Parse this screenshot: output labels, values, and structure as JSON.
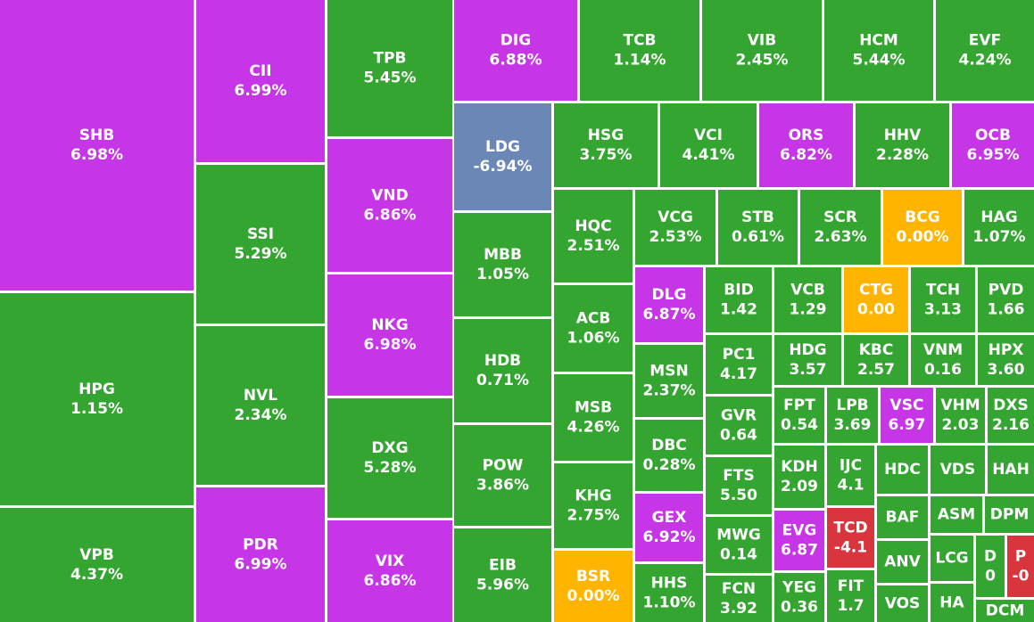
{
  "chart_data": {
    "type": "treemap",
    "categories": [
      "SHB",
      "HPG",
      "VPB",
      "CII",
      "SSI",
      "NVL",
      "PDR",
      "TPB",
      "VND",
      "NKG",
      "DXG",
      "VIX",
      "DIG",
      "TCB",
      "VIB",
      "HCM",
      "EVF",
      "LDG",
      "MBB",
      "HDB",
      "POW",
      "EIB",
      "HSG",
      "VCI",
      "ORS",
      "HHV",
      "OCB",
      "HQC",
      "ACB",
      "MSB",
      "KHG",
      "BSR",
      "VCG",
      "STB",
      "SCR",
      "BCG",
      "HAG",
      "DLG",
      "MSN",
      "DBC",
      "GEX",
      "HHS",
      "BID",
      "PC1",
      "GVR",
      "FTS",
      "MWG",
      "FCN",
      "VCB",
      "CTG",
      "TCH",
      "PVD",
      "HDG",
      "KBC",
      "VNM",
      "HPX",
      "FPT",
      "LPB",
      "VSC",
      "VHM",
      "DXS",
      "KDH",
      "EVG",
      "YEG",
      "IJC",
      "TCD",
      "FIT",
      "HDC",
      "BAF",
      "ANV",
      "VOS",
      "VDS",
      "HAH",
      "ASM",
      "DPM",
      "LCG",
      "HA",
      "D",
      "P",
      "DCM"
    ],
    "values": [
      6.98,
      1.15,
      4.37,
      6.99,
      5.29,
      2.34,
      6.99,
      5.45,
      6.86,
      6.98,
      5.28,
      6.86,
      6.88,
      1.14,
      2.45,
      5.44,
      4.24,
      -6.94,
      1.05,
      0.71,
      3.86,
      5.96,
      3.75,
      4.41,
      6.82,
      2.28,
      6.95,
      2.51,
      1.06,
      4.26,
      2.75,
      0,
      2.53,
      0.61,
      2.63,
      0,
      1.07,
      6.87,
      2.37,
      0.28,
      6.92,
      1.1,
      1.42,
      4.17,
      0.64,
      5.5,
      0.14,
      3.92,
      1.29,
      0,
      3.13,
      1.66,
      3.57,
      2.57,
      0.16,
      3.6,
      0.54,
      3.69,
      6.97,
      2.03,
      2.16,
      2.09,
      6.87,
      0.36,
      4.1,
      -4.1,
      1.7,
      null,
      null,
      null,
      null,
      null,
      null,
      null,
      null,
      null,
      null,
      0,
      0,
      null
    ],
    "value_labels": [
      "6.98%",
      "1.15%",
      "4.37%",
      "6.99%",
      "5.29%",
      "2.34%",
      "6.99%",
      "5.45%",
      "6.86%",
      "6.98%",
      "5.28%",
      "6.86%",
      "6.88%",
      "1.14%",
      "2.45%",
      "5.44%",
      "4.24%",
      "-6.94%",
      "1.05%",
      "0.71%",
      "3.86%",
      "5.96%",
      "3.75%",
      "4.41%",
      "6.82%",
      "2.28%",
      "6.95%",
      "2.51%",
      "1.06%",
      "4.26%",
      "2.75%",
      "0.00%",
      "2.53%",
      "0.61%",
      "2.63%",
      "0.00%",
      "1.07%",
      "6.87%",
      "2.37%",
      "0.28%",
      "6.92%",
      "1.10%",
      "1.42",
      "4.17",
      "0.64",
      "5.50",
      "0.14",
      "3.92",
      "1.29",
      "0.00",
      "3.13",
      "1.66",
      "3.57",
      "2.57",
      "0.16",
      "3.60",
      "0.54",
      "3.69",
      "6.97",
      "2.03",
      "2.16",
      "2.09",
      "6.87",
      "0.36",
      "4.1",
      "-4.1",
      "1.7",
      null,
      null,
      null,
      null,
      null,
      null,
      null,
      null,
      null,
      null,
      "0",
      "-0",
      null
    ],
    "colors": [
      "#c736e6",
      "#34a530",
      "#34a530",
      "#c736e6",
      "#34a530",
      "#34a530",
      "#c736e6",
      "#34a530",
      "#c736e6",
      "#c736e6",
      "#34a530",
      "#c736e6",
      "#c736e6",
      "#34a530",
      "#34a530",
      "#34a530",
      "#34a530",
      "#6b87b5",
      "#34a530",
      "#34a530",
      "#34a530",
      "#34a530",
      "#34a530",
      "#34a530",
      "#c736e6",
      "#34a530",
      "#c736e6",
      "#34a530",
      "#34a530",
      "#34a530",
      "#34a530",
      "#ffb400",
      "#34a530",
      "#34a530",
      "#34a530",
      "#ffb400",
      "#34a530",
      "#c736e6",
      "#34a530",
      "#34a530",
      "#c736e6",
      "#34a530",
      "#34a530",
      "#34a530",
      "#34a530",
      "#34a530",
      "#34a530",
      "#34a530",
      "#34a530",
      "#ffb400",
      "#34a530",
      "#34a530",
      "#34a530",
      "#34a530",
      "#34a530",
      "#34a530",
      "#34a530",
      "#34a530",
      "#c736e6",
      "#34a530",
      "#34a530",
      "#34a530",
      "#c736e6",
      "#34a530",
      "#34a530",
      "#d8353d",
      "#34a530",
      "#34a530",
      "#34a530",
      "#34a530",
      "#34a530",
      "#34a530",
      "#34a530",
      "#34a530",
      "#34a530",
      "#34a530",
      "#34a530",
      "#34a530",
      "#d8353d",
      "#34a530"
    ]
  }
}
